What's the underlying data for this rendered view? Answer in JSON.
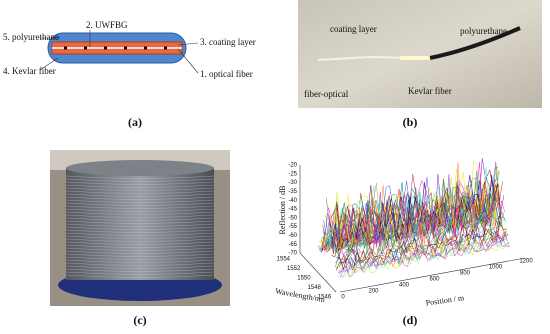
{
  "panels": [
    {
      "label": "(a)",
      "annotations": [
        "5. polyurethane",
        "2. UWFBG",
        "3. coating layer",
        "4. Kevlar fiber",
        "1. optical fiber"
      ]
    },
    {
      "label": "(b)",
      "annotations": [
        "coating layer",
        "polyurethane",
        "fiber-optical",
        "Kevlar fiber"
      ]
    },
    {
      "label": "(c)"
    },
    {
      "label": "(d)",
      "z_axis_label": "Reflection / dB",
      "z_ticks": [
        -20,
        -25,
        -30,
        -35,
        -40,
        -45,
        -50,
        -55,
        -60,
        -65,
        -70
      ],
      "y_axis_label": "Wavelength/nm",
      "y_ticks": [
        1554,
        1552,
        1550,
        1548,
        1546
      ],
      "x_axis_label": "Position / m",
      "x_ticks": [
        0,
        200,
        400,
        600,
        800,
        1000,
        1200
      ]
    }
  ]
}
